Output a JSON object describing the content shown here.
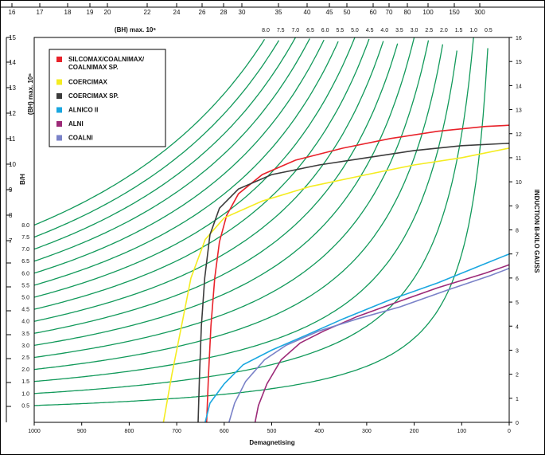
{
  "chart_data": {
    "type": "line",
    "xlabel": "Demagnetising",
    "ylabel_right": "INDUCTION B-KILO GAUSS",
    "ylabel_left": "(BH) max. 10⁶",
    "bh_ratio_label": "B/H",
    "bh_top_label": "(BH)  max. 10⁶",
    "xlim": [
      1000,
      0
    ],
    "ylim": [
      0,
      16
    ],
    "x_ticks": [
      "1000",
      "900",
      "800",
      "700",
      "600",
      "500",
      "400",
      "300",
      "200",
      "100",
      "0"
    ],
    "right_y_ticks": [
      "0",
      "1",
      "2",
      "3",
      "4",
      "5",
      "6",
      "7",
      "8",
      "9",
      "10",
      "11",
      "12",
      "13",
      "14",
      "15",
      "16"
    ],
    "left_bh_ticks": [
      "15",
      "14",
      "13",
      "12",
      "11",
      "10",
      "9",
      "8",
      "7"
    ],
    "top_bh_ticks": [
      "16",
      "17",
      "18",
      "19",
      "20",
      "22",
      "24",
      "26",
      "28",
      "30",
      "35",
      "40",
      "45",
      "50",
      "60",
      "70",
      "80",
      "100",
      "150",
      "300"
    ],
    "left_bhmax_labels": [
      "0.5",
      "1.0",
      "1.5",
      "2.0",
      "2.5",
      "3.0",
      "3.5",
      "4.0",
      "4.5",
      "5.0",
      "5.5",
      "6.0",
      "6.5",
      "7.0",
      "7.5",
      "8.0"
    ],
    "top_bhmax_labels": [
      "8.0",
      "7.5",
      "7.0",
      "6.5",
      "6.0",
      "5.5",
      "5.0",
      "4.5",
      "4.0",
      "3.5",
      "3.0",
      "2.5",
      "2.0",
      "1.5",
      "1.0",
      "0.5"
    ],
    "bhmax_values": [
      0.5,
      1.0,
      1.5,
      2.0,
      2.5,
      3.0,
      3.5,
      4.0,
      4.5,
      5.0,
      5.5,
      6.0,
      6.5,
      7.0,
      7.5,
      8.0
    ],
    "series": [
      {
        "name": "SILCOMAX/COALNIMAX/\nCOALNIMAX SP.",
        "color": "#e8222a",
        "points": [
          [
            637,
            0
          ],
          [
            633,
            2
          ],
          [
            628,
            4
          ],
          [
            620,
            6
          ],
          [
            610,
            7.5
          ],
          [
            595,
            8.6
          ],
          [
            570,
            9.5
          ],
          [
            520,
            10.3
          ],
          [
            450,
            10.9
          ],
          [
            350,
            11.4
          ],
          [
            250,
            11.8
          ],
          [
            150,
            12.1
          ],
          [
            50,
            12.3
          ],
          [
            0,
            12.35
          ]
        ]
      },
      {
        "name": "COERCIMAX",
        "color": "#f4ec21",
        "points": [
          [
            728,
            0
          ],
          [
            710,
            2
          ],
          [
            690,
            4
          ],
          [
            670,
            6
          ],
          [
            640,
            7.6
          ],
          [
            600,
            8.5
          ],
          [
            520,
            9.2
          ],
          [
            420,
            9.8
          ],
          [
            300,
            10.3
          ],
          [
            200,
            10.7
          ],
          [
            100,
            11.0
          ],
          [
            0,
            11.4
          ]
        ]
      },
      {
        "name": "COERCIMAX SP.",
        "color": "#3c3c3c",
        "points": [
          [
            655,
            0
          ],
          [
            652,
            2
          ],
          [
            648,
            4
          ],
          [
            641,
            6
          ],
          [
            630,
            7.8
          ],
          [
            610,
            8.9
          ],
          [
            570,
            9.7
          ],
          [
            500,
            10.3
          ],
          [
            400,
            10.7
          ],
          [
            300,
            11.0
          ],
          [
            200,
            11.3
          ],
          [
            100,
            11.5
          ],
          [
            0,
            11.6
          ]
        ]
      },
      {
        "name": "ALNICO II",
        "color": "#1aa7e0",
        "points": [
          [
            640,
            0
          ],
          [
            630,
            0.8
          ],
          [
            600,
            1.6
          ],
          [
            560,
            2.4
          ],
          [
            500,
            3.0
          ],
          [
            430,
            3.6
          ],
          [
            350,
            4.3
          ],
          [
            250,
            5.1
          ],
          [
            150,
            5.8
          ],
          [
            50,
            6.6
          ],
          [
            0,
            7.0
          ]
        ]
      },
      {
        "name": "ALNI",
        "color": "#9c2a78",
        "points": [
          [
            535,
            0
          ],
          [
            528,
            0.7
          ],
          [
            510,
            1.6
          ],
          [
            480,
            2.6
          ],
          [
            440,
            3.3
          ],
          [
            390,
            3.8
          ],
          [
            320,
            4.4
          ],
          [
            250,
            4.9
          ],
          [
            150,
            5.6
          ],
          [
            50,
            6.2
          ],
          [
            0,
            6.55
          ]
        ]
      },
      {
        "name": "COALNI",
        "color": "#7a82c8",
        "points": [
          [
            590,
            0
          ],
          [
            578,
            0.8
          ],
          [
            555,
            1.7
          ],
          [
            515,
            2.6
          ],
          [
            470,
            3.2
          ],
          [
            400,
            3.8
          ],
          [
            320,
            4.3
          ],
          [
            230,
            4.8
          ],
          [
            130,
            5.5
          ],
          [
            40,
            6.1
          ],
          [
            0,
            6.4
          ]
        ]
      }
    ],
    "iso_bhmax_color": "#11995a",
    "grid": false,
    "legend_position": "top-left"
  }
}
